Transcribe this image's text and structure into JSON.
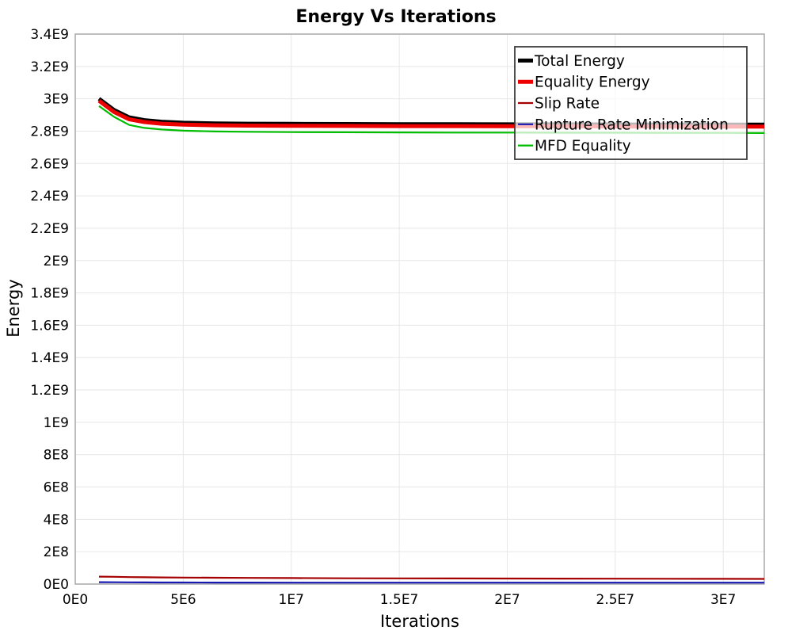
{
  "window": {
    "background_color": "#ffffff",
    "grid_color": "#e7e7e7",
    "plot_border_color": "#a3a3a3",
    "legend_border_color": "#3c3c3c"
  },
  "chart_data": {
    "type": "line",
    "title": "Energy Vs Iterations",
    "xlabel": "Iterations",
    "ylabel": "Energy",
    "xlim": [
      0,
      31900000
    ],
    "ylim": [
      0,
      3400000000
    ],
    "grid": true,
    "legend_position": "top-right",
    "x_ticks": [
      {
        "value": 0,
        "label": "0E0"
      },
      {
        "value": 5000000,
        "label": "5E6"
      },
      {
        "value": 10000000,
        "label": "1E7"
      },
      {
        "value": 15000000,
        "label": "1.5E7"
      },
      {
        "value": 20000000,
        "label": "2E7"
      },
      {
        "value": 25000000,
        "label": "2.5E7"
      },
      {
        "value": 30000000,
        "label": "3E7"
      }
    ],
    "y_ticks": [
      {
        "value": 0,
        "label": "0E0"
      },
      {
        "value": 200000000,
        "label": "2E8"
      },
      {
        "value": 400000000,
        "label": "4E8"
      },
      {
        "value": 600000000,
        "label": "6E8"
      },
      {
        "value": 800000000,
        "label": "8E8"
      },
      {
        "value": 1000000000,
        "label": "1E9"
      },
      {
        "value": 1200000000,
        "label": "1.2E9"
      },
      {
        "value": 1400000000,
        "label": "1.4E9"
      },
      {
        "value": 1600000000,
        "label": "1.6E9"
      },
      {
        "value": 1800000000,
        "label": "1.8E9"
      },
      {
        "value": 2000000000,
        "label": "2E9"
      },
      {
        "value": 2200000000,
        "label": "2.2E9"
      },
      {
        "value": 2400000000,
        "label": "2.4E9"
      },
      {
        "value": 2600000000,
        "label": "2.6E9"
      },
      {
        "value": 2800000000,
        "label": "2.8E9"
      },
      {
        "value": 3000000000,
        "label": "3E9"
      },
      {
        "value": 3200000000,
        "label": "3.2E9"
      },
      {
        "value": 3400000000,
        "label": "3.4E9"
      }
    ],
    "x": [
      1100000,
      1800000,
      2500000,
      3200000,
      4000000,
      5000000,
      6500000,
      8000000,
      10000000,
      12500000,
      15000000,
      17500000,
      20000000,
      22500000,
      25000000,
      27500000,
      30000000,
      31900000
    ],
    "series": [
      {
        "name": "Total Energy",
        "color": "#000000",
        "stroke_width": 5,
        "values": [
          3000000000,
          2930000000,
          2885000000,
          2868000000,
          2858000000,
          2852000000,
          2848000000,
          2846000000,
          2845000000,
          2844000000,
          2843000000,
          2843000000,
          2842000000,
          2842000000,
          2841000000,
          2841000000,
          2840000000,
          2840000000
        ]
      },
      {
        "name": "Equality Energy",
        "color": "#ed0000",
        "stroke_width": 5,
        "values": [
          2988000000,
          2918000000,
          2873000000,
          2856000000,
          2846000000,
          2840000000,
          2836000000,
          2834000000,
          2833000000,
          2832000000,
          2831000000,
          2831000000,
          2830000000,
          2830000000,
          2829000000,
          2829000000,
          2828000000,
          2828000000
        ]
      },
      {
        "name": "Slip Rate",
        "color": "#a40000",
        "stroke_width": 2.2,
        "values": [
          46000000,
          45000000,
          43000000,
          42000000,
          41000000,
          40000000,
          39000000,
          38000000,
          37000000,
          36000000,
          35500000,
          35000000,
          34500000,
          34000000,
          33500000,
          33000000,
          32500000,
          32000000
        ]
      },
      {
        "name": "Rupture Rate Minimization",
        "color": "#1717b2",
        "stroke_width": 2.2,
        "values": [
          12000000,
          11500000,
          11000000,
          10500000,
          10000000,
          10000000,
          9500000,
          9500000,
          9000000,
          9000000,
          9000000,
          9000000,
          9000000,
          9000000,
          9000000,
          9000000,
          9000000,
          9000000
        ]
      },
      {
        "name": "MFD Equality",
        "color": "#00bd00",
        "stroke_width": 2.2,
        "values": [
          2955000000,
          2888000000,
          2838000000,
          2820000000,
          2810000000,
          2803000000,
          2798000000,
          2796000000,
          2794000000,
          2793000000,
          2792000000,
          2791000000,
          2791000000,
          2790000000,
          2790000000,
          2789000000,
          2789000000,
          2788000000
        ]
      }
    ]
  }
}
